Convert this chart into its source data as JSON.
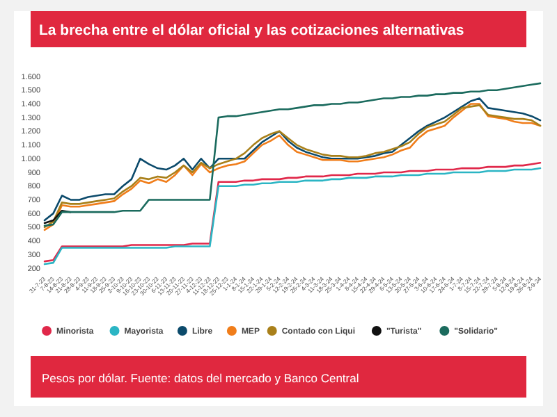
{
  "chart_data": {
    "type": "line",
    "title": "La brecha entre el dólar oficial y las cotizaciones alternativas",
    "annotations": [
      "Pesos por dólar. Fuente: datos del mercado y Banco Central"
    ],
    "categories": [
      "31-7-23",
      "7-8-23",
      "14-8-23",
      "21-8-23",
      "28-8-23",
      "4-9-23",
      "11-9-23",
      "18-9-23",
      "25-9-23",
      "2-10-23",
      "9-10-23",
      "16-10-23",
      "23-10-23",
      "30-10-23",
      "6-11-23",
      "13-11-23",
      "20-11-23",
      "27-11-23",
      "4-12-23",
      "11-12-23",
      "18-12-23",
      "25-12-23",
      "1-1-24",
      "8-1-24",
      "15-1-24",
      "22-1-24",
      "29-1-24",
      "5-2-24",
      "12-2-24",
      "19-2-24",
      "26-2-24",
      "4-3-24",
      "11-3-24",
      "18-3-24",
      "25-3-24",
      "1-4-24",
      "8-4-24",
      "15-4-24",
      "22-4-24",
      "29-4-24",
      "6-5-24",
      "13-5-24",
      "20-5-24",
      "27-5-24",
      "3-6-24",
      "10-6-24",
      "17-6-24",
      "24-6-24",
      "1-7-24",
      "8-7-24",
      "15-7-24",
      "22-7-24",
      "29-7-24",
      "5-8-24",
      "12-8-24",
      "19-8-24",
      "26-8-24",
      "2-9-24"
    ],
    "ylim": [
      200,
      1600
    ],
    "yticks": [
      200,
      300,
      400,
      500,
      600,
      700,
      800,
      900,
      {
        "value": 1000,
        "label": "1.000"
      },
      {
        "value": 1100,
        "label": "1.100"
      },
      {
        "value": 1200,
        "label": "1.200"
      },
      {
        "value": 1300,
        "label": "1.300"
      },
      {
        "value": 1400,
        "label": "1.400"
      },
      {
        "value": 1500,
        "label": "1.500"
      },
      {
        "value": 1600,
        "label": "1.600"
      }
    ],
    "legend": "bottom",
    "series": [
      {
        "name": "Minorista",
        "color": "#e0284a",
        "values": [
          250,
          260,
          360,
          360,
          360,
          360,
          360,
          360,
          360,
          360,
          370,
          370,
          370,
          370,
          370,
          370,
          370,
          380,
          380,
          380,
          830,
          830,
          830,
          840,
          840,
          850,
          850,
          850,
          860,
          860,
          870,
          870,
          870,
          880,
          880,
          880,
          890,
          890,
          890,
          900,
          900,
          900,
          910,
          910,
          910,
          920,
          920,
          920,
          930,
          930,
          930,
          940,
          940,
          940,
          950,
          950,
          960,
          970
        ]
      },
      {
        "name": "Mayorista",
        "color": "#2bb5c4",
        "values": [
          230,
          240,
          350,
          350,
          350,
          350,
          350,
          350,
          350,
          350,
          350,
          350,
          350,
          350,
          350,
          360,
          360,
          360,
          360,
          360,
          800,
          800,
          800,
          810,
          810,
          820,
          820,
          830,
          830,
          830,
          840,
          840,
          840,
          850,
          850,
          860,
          860,
          860,
          870,
          870,
          870,
          880,
          880,
          880,
          890,
          890,
          890,
          900,
          900,
          900,
          900,
          910,
          910,
          910,
          920,
          920,
          920,
          930
        ]
      },
      {
        "name": "Libre",
        "color": "#0b4a6b",
        "values": [
          550,
          600,
          730,
          700,
          700,
          720,
          730,
          740,
          740,
          800,
          850,
          1000,
          960,
          930,
          920,
          950,
          1000,
          920,
          1000,
          930,
          1000,
          1000,
          1000,
          1000,
          1060,
          1120,
          1160,
          1200,
          1130,
          1080,
          1050,
          1030,
          1010,
          1000,
          1000,
          1000,
          1000,
          1010,
          1020,
          1040,
          1050,
          1100,
          1150,
          1200,
          1240,
          1270,
          1300,
          1340,
          1380,
          1420,
          1440,
          1370,
          1360,
          1350,
          1340,
          1330,
          1310,
          1280
        ]
      },
      {
        "name": "MEP",
        "color": "#f07d1a",
        "values": [
          480,
          520,
          660,
          650,
          650,
          660,
          670,
          680,
          690,
          740,
          780,
          840,
          820,
          850,
          830,
          880,
          950,
          880,
          960,
          900,
          930,
          950,
          960,
          980,
          1040,
          1100,
          1130,
          1170,
          1100,
          1050,
          1030,
          1010,
          990,
          990,
          990,
          980,
          980,
          990,
          1000,
          1010,
          1030,
          1060,
          1080,
          1150,
          1200,
          1220,
          1240,
          1300,
          1350,
          1400,
          1400,
          1310,
          1300,
          1290,
          1270,
          1260,
          1260,
          1240
        ]
      },
      {
        "name": "Contado con Liqui",
        "color": "#a9801a",
        "values": [
          500,
          540,
          680,
          670,
          670,
          680,
          690,
          700,
          710,
          760,
          800,
          860,
          850,
          870,
          860,
          900,
          950,
          900,
          970,
          930,
          960,
          980,
          1000,
          1040,
          1100,
          1150,
          1180,
          1200,
          1150,
          1100,
          1070,
          1050,
          1030,
          1020,
          1020,
          1010,
          1010,
          1020,
          1040,
          1050,
          1070,
          1090,
          1120,
          1180,
          1230,
          1250,
          1270,
          1320,
          1370,
          1380,
          1390,
          1320,
          1310,
          1300,
          1290,
          1290,
          1280,
          1240
        ]
      },
      {
        "name": "\"Turista\"",
        "color": "#111111",
        "values": [
          530,
          550,
          620,
          610,
          null,
          null,
          null,
          null,
          null,
          null,
          null,
          null,
          null,
          null,
          null,
          null,
          null,
          null,
          null,
          null,
          null,
          null,
          null,
          null,
          null,
          null,
          null,
          null,
          null,
          null,
          null,
          null,
          null,
          null,
          null,
          null,
          null,
          null,
          null,
          null,
          null,
          null,
          null,
          null,
          null,
          null,
          null,
          null,
          null,
          null,
          null,
          null,
          null,
          null,
          null,
          null,
          null,
          null
        ]
      },
      {
        "name": "\"Solidario\"",
        "color": "#1b6b5e",
        "values": [
          510,
          520,
          610,
          610,
          610,
          610,
          610,
          610,
          610,
          620,
          620,
          620,
          700,
          700,
          700,
          700,
          700,
          700,
          700,
          700,
          1300,
          1310,
          1310,
          1320,
          1330,
          1340,
          1350,
          1360,
          1360,
          1370,
          1380,
          1390,
          1390,
          1400,
          1400,
          1410,
          1410,
          1420,
          1430,
          1440,
          1440,
          1450,
          1450,
          1460,
          1460,
          1470,
          1470,
          1480,
          1480,
          1490,
          1490,
          1500,
          1500,
          1510,
          1520,
          1530,
          1540,
          1550
        ]
      }
    ]
  }
}
